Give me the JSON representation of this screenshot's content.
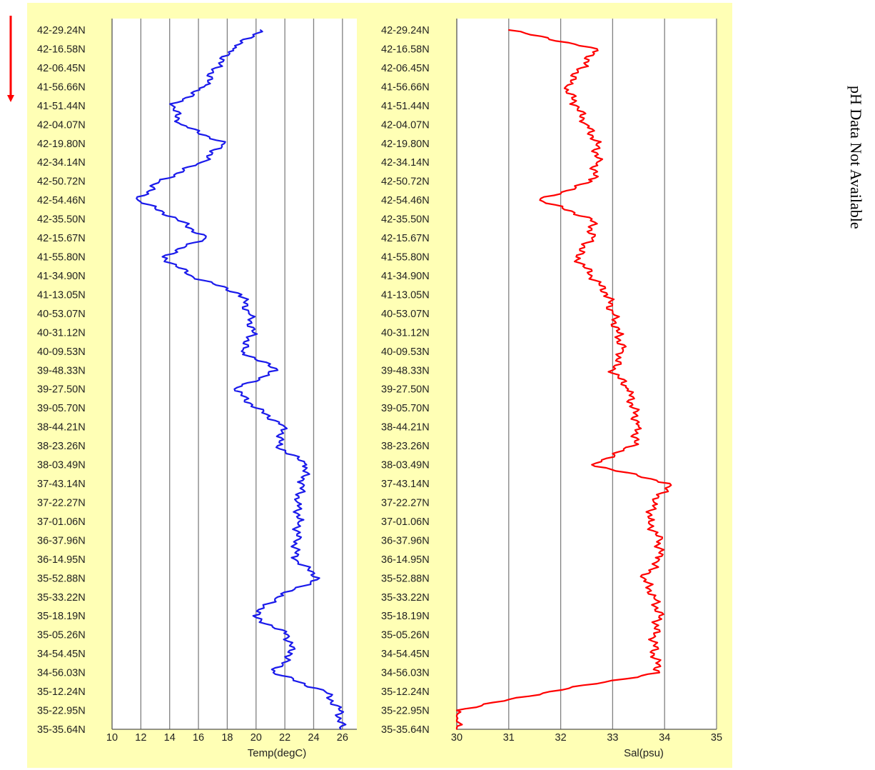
{
  "side_note": "pH Data Not Available",
  "chart_data": [
    {
      "type": "line",
      "xlabel": "Temp(degC)",
      "ylabel": "",
      "xlim": [
        10,
        27
      ],
      "xticks": [
        10,
        12,
        14,
        16,
        18,
        20,
        22,
        24,
        26
      ],
      "grid": true,
      "color": "#1a1aeb",
      "ytick_labels": [
        "42-29.24N",
        "42-16.58N",
        "42-06.45N",
        "41-56.66N",
        "41-51.44N",
        "42-04.07N",
        "42-19.80N",
        "42-34.14N",
        "42-50.72N",
        "42-54.46N",
        "42-35.50N",
        "42-15.67N",
        "41-55.80N",
        "41-34.90N",
        "41-13.05N",
        "40-53.07N",
        "40-31.12N",
        "40-09.53N",
        "39-48.33N",
        "39-27.50N",
        "39-05.70N",
        "38-44.21N",
        "38-23.26N",
        "38-03.49N",
        "37-43.14N",
        "37-22.27N",
        "37-01.06N",
        "36-37.96N",
        "36-14.95N",
        "35-52.88N",
        "35-33.22N",
        "35-18.19N",
        "35-05.26N",
        "34-54.45N",
        "34-56.03N",
        "35-12.24N",
        "35-22.95N",
        "35-35.64N"
      ],
      "values": [
        20.3,
        18.4,
        17.2,
        16.4,
        14.2,
        14.8,
        17.8,
        16.2,
        13.3,
        11.8,
        14.5,
        16.5,
        13.5,
        15.5,
        19.0,
        19.5,
        19.8,
        19.0,
        21.5,
        18.5,
        20.0,
        22.0,
        21.5,
        23.5,
        23.2,
        22.9,
        23.0,
        22.8,
        22.7,
        24.4,
        21.5,
        19.8,
        22.2,
        22.5,
        21.2,
        24.8,
        25.8,
        25.9
      ]
    },
    {
      "type": "line",
      "xlabel": "Sal(psu)",
      "ylabel": "",
      "xlim": [
        30,
        35
      ],
      "xticks": [
        30,
        31,
        32,
        33,
        34,
        35
      ],
      "grid": true,
      "color": "#ff0000",
      "ytick_labels": [
        "42-29.24N",
        "42-16.58N",
        "42-06.45N",
        "41-56.66N",
        "41-51.44N",
        "42-04.07N",
        "42-19.80N",
        "42-34.14N",
        "42-50.72N",
        "42-54.46N",
        "42-35.50N",
        "42-15.67N",
        "41-55.80N",
        "41-34.90N",
        "41-13.05N",
        "40-53.07N",
        "40-31.12N",
        "40-09.53N",
        "39-48.33N",
        "39-27.50N",
        "39-05.70N",
        "38-44.21N",
        "38-23.26N",
        "38-03.49N",
        "37-43.14N",
        "37-22.27N",
        "37-01.06N",
        "36-37.96N",
        "36-14.95N",
        "35-52.88N",
        "35-33.22N",
        "35-18.19N",
        "35-05.26N",
        "34-54.45N",
        "34-56.03N",
        "35-12.24N",
        "35-22.95N",
        "35-35.64N"
      ],
      "values": [
        31.0,
        32.7,
        32.4,
        32.1,
        32.3,
        32.5,
        32.7,
        32.7,
        32.6,
        31.6,
        32.6,
        32.6,
        32.3,
        32.6,
        32.9,
        33.0,
        33.1,
        33.2,
        33.0,
        33.3,
        33.4,
        33.5,
        33.4,
        32.6,
        34.1,
        33.8,
        33.7,
        33.9,
        33.9,
        33.6,
        33.8,
        33.9,
        33.8,
        33.8,
        33.9,
        31.8,
        30.0,
        30.0
      ]
    }
  ]
}
